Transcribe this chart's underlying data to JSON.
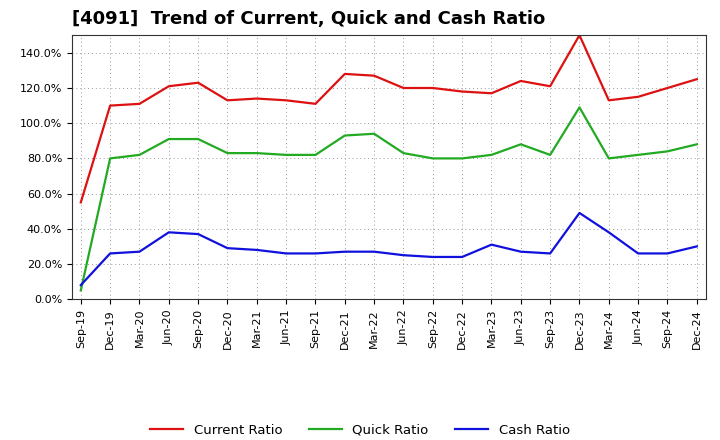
{
  "title": "[4091]  Trend of Current, Quick and Cash Ratio",
  "x_labels": [
    "Sep-19",
    "Dec-19",
    "Mar-20",
    "Jun-20",
    "Sep-20",
    "Dec-20",
    "Mar-21",
    "Jun-21",
    "Sep-21",
    "Dec-21",
    "Mar-22",
    "Jun-22",
    "Sep-22",
    "Dec-22",
    "Mar-23",
    "Jun-23",
    "Sep-23",
    "Dec-23",
    "Mar-24",
    "Jun-24",
    "Sep-24",
    "Dec-24"
  ],
  "current_ratio": [
    55,
    110,
    111,
    121,
    123,
    113,
    114,
    113,
    111,
    128,
    127,
    120,
    120,
    118,
    117,
    124,
    121,
    150,
    113,
    115,
    120,
    125
  ],
  "quick_ratio": [
    5,
    80,
    82,
    91,
    91,
    83,
    83,
    82,
    82,
    93,
    94,
    83,
    80,
    80,
    82,
    88,
    82,
    109,
    80,
    82,
    84,
    88
  ],
  "cash_ratio": [
    8,
    26,
    27,
    38,
    37,
    29,
    28,
    26,
    26,
    27,
    27,
    25,
    24,
    24,
    31,
    27,
    26,
    49,
    38,
    26,
    26,
    30
  ],
  "current_color": "#dd1111",
  "quick_color": "#22aa22",
  "cash_color": "#1111dd",
  "background_color": "#ffffff",
  "plot_bg_color": "#ffffff",
  "grid_color": "#999999",
  "ylim": [
    0,
    150
  ],
  "yticks": [
    0,
    20,
    40,
    60,
    80,
    100,
    120,
    140
  ],
  "ytick_labels": [
    "0.0%",
    "20.0%",
    "40.0%",
    "60.0%",
    "80.0%",
    "100.0%",
    "120.0%",
    "140.0%"
  ],
  "legend_labels": [
    "Current Ratio",
    "Quick Ratio",
    "Cash Ratio"
  ],
  "title_fontsize": 13,
  "tick_fontsize": 8,
  "legend_fontsize": 9.5,
  "linewidth": 1.6
}
